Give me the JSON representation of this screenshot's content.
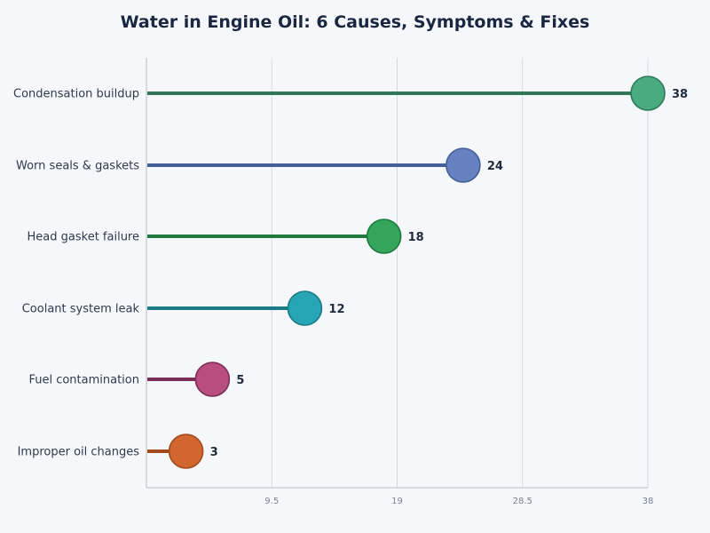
{
  "chart_data": {
    "type": "lollipop",
    "title": "Water in Engine Oil: 6 Causes, Symptoms & Fixes",
    "xlabel": "",
    "ylabel": "",
    "xlim": [
      0,
      38
    ],
    "xticks": [
      9.5,
      19,
      28.5,
      38
    ],
    "xtick_labels": [
      "9.5",
      "19",
      "28.5",
      "38"
    ],
    "grid": "vertical",
    "categories": [
      "Condensation buildup",
      "Worn seals & gaskets",
      "Head gasket failure",
      "Coolant system leak",
      "Fuel contamination",
      "Improper oil changes"
    ],
    "values": [
      38,
      24,
      18,
      12,
      5,
      3
    ],
    "value_labels": [
      "38",
      "24",
      "18",
      "12",
      "5",
      "3"
    ],
    "colors": {
      "fill": [
        "#4aab80",
        "#6680c0",
        "#33a65c",
        "#26a5b5",
        "#b84d80",
        "#d1662e"
      ],
      "line": [
        "#2e7a58",
        "#445f99",
        "#1f7a3d",
        "#1a7a85",
        "#7a2e55",
        "#a34a1c"
      ]
    }
  }
}
